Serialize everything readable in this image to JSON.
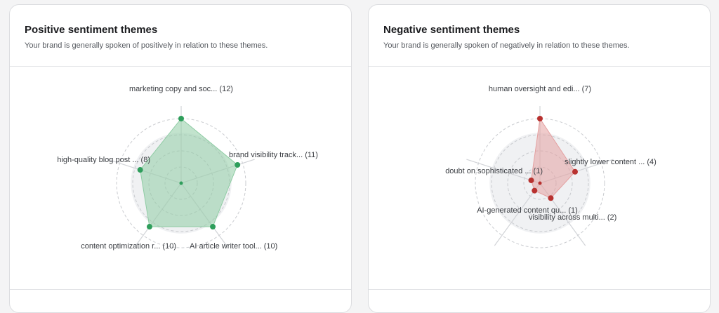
{
  "panels": [
    {
      "id": "positive",
      "title": "Positive sentiment themes",
      "subtitle": "Your brand is generally spoken of positively in relation to these themes.",
      "color": "#2e9e5b",
      "fill": "#8fcca4",
      "max": 12,
      "themes": [
        {
          "label": "marketing copy and soc...",
          "count": 12
        },
        {
          "label": "brand visibility track...",
          "count": 11
        },
        {
          "label": "AI article writer tool...",
          "count": 10
        },
        {
          "label": "content optimization r...",
          "count": 10
        },
        {
          "label": "high-quality blog post ...",
          "count": 8
        }
      ]
    },
    {
      "id": "negative",
      "title": "Negative sentiment themes",
      "subtitle": "Your brand is generally spoken of negatively in relation to these themes.",
      "color": "#b8312f",
      "fill": "#e4a0a0",
      "max": 7,
      "themes": [
        {
          "label": "human oversight and edi...",
          "count": 7
        },
        {
          "label": "slightly lower content ...",
          "count": 4
        },
        {
          "label": "visibility across multi...",
          "count": 2
        },
        {
          "label": "AI-generated content qu...",
          "count": 1
        },
        {
          "label": "doubt on sophisticated ...",
          "count": 1
        }
      ]
    }
  ]
}
